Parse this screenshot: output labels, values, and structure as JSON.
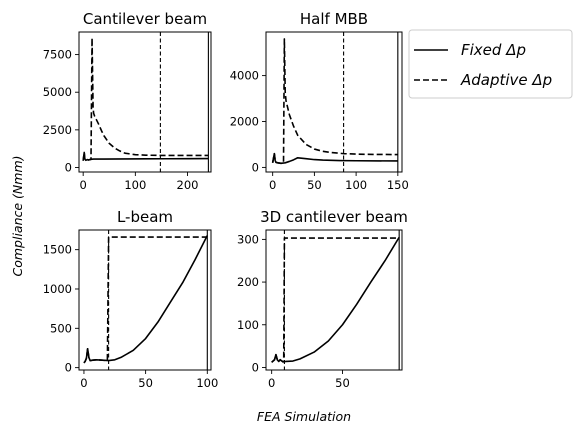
{
  "figure": {
    "ylabel": "Compliance (Nmm)",
    "xlabel": "FEA Simulation"
  },
  "legend": {
    "placement": "right",
    "entries": [
      {
        "label": "Fixed Δp",
        "style": "solid"
      },
      {
        "label": "Adaptive Δp",
        "style": "dashed"
      }
    ]
  },
  "colors": {
    "line": "#000000",
    "background": "#ffffff",
    "legend_border": "#cccccc"
  },
  "chart_data": [
    {
      "type": "line",
      "title": "Cantilever beam",
      "xlim": [
        -8,
        245
      ],
      "ylim": [
        -300,
        9000
      ],
      "xticks": [
        0,
        100,
        200
      ],
      "xtick_labels": [
        "0",
        "100",
        "200"
      ],
      "yticks": [
        0,
        2500,
        5000,
        7500
      ],
      "ytick_labels": [
        "0",
        "2500",
        "5000",
        "7500"
      ],
      "vlines": [
        {
          "x": 148,
          "style": "dashed"
        },
        {
          "x": 240,
          "style": "solid"
        }
      ],
      "series": [
        {
          "name": "Fixed Δp",
          "style": "solid",
          "x": [
            0,
            2,
            3,
            4,
            5,
            8,
            10,
            15,
            20,
            40,
            80,
            120,
            160,
            200,
            240
          ],
          "y": [
            450,
            1000,
            600,
            520,
            480,
            520,
            500,
            540,
            560,
            560,
            570,
            575,
            580,
            585,
            590
          ]
        },
        {
          "name": "Adaptive Δp",
          "style": "dashed",
          "x": [
            0,
            2,
            3,
            4,
            5,
            8,
            10,
            15,
            17,
            19,
            20,
            22,
            25,
            30,
            35,
            40,
            50,
            60,
            70,
            80,
            100,
            120,
            148,
            200,
            240
          ],
          "y": [
            450,
            1000,
            600,
            520,
            480,
            520,
            500,
            540,
            8600,
            4000,
            3600,
            3400,
            3200,
            2850,
            2450,
            2100,
            1600,
            1300,
            1100,
            950,
            850,
            820,
            800,
            800,
            800
          ]
        }
      ]
    },
    {
      "type": "line",
      "title": "Half MBB",
      "xlim": [
        -8,
        155
      ],
      "ylim": [
        -200,
        5900
      ],
      "xticks": [
        0,
        50,
        100,
        150
      ],
      "xtick_labels": [
        "0",
        "50",
        "100",
        "150"
      ],
      "yticks": [
        0,
        2000,
        4000
      ],
      "ytick_labels": [
        "0",
        "2000",
        "4000"
      ],
      "vlines": [
        {
          "x": 85,
          "style": "dashed"
        },
        {
          "x": 150,
          "style": "solid"
        }
      ],
      "series": [
        {
          "name": "Fixed Δp",
          "style": "solid",
          "x": [
            0,
            2,
            3,
            4,
            6,
            10,
            15,
            20,
            25,
            30,
            40,
            50,
            60,
            80,
            100,
            150
          ],
          "y": [
            200,
            600,
            300,
            220,
            200,
            180,
            200,
            260,
            330,
            420,
            380,
            340,
            320,
            300,
            290,
            280
          ]
        },
        {
          "name": "Adaptive Δp",
          "style": "dashed",
          "x": [
            0,
            2,
            3,
            4,
            6,
            10,
            13,
            14,
            15,
            16,
            18,
            20,
            25,
            30,
            40,
            50,
            60,
            70,
            85,
            110,
            150
          ],
          "y": [
            200,
            600,
            300,
            220,
            200,
            180,
            200,
            5600,
            3300,
            2900,
            2600,
            2300,
            1800,
            1400,
            1000,
            800,
            700,
            650,
            600,
            570,
            560
          ]
        }
      ]
    },
    {
      "type": "line",
      "title": "L-beam",
      "xlim": [
        -4,
        103
      ],
      "ylim": [
        -30,
        1750
      ],
      "xticks": [
        0,
        50,
        100
      ],
      "xtick_labels": [
        "0",
        "50",
        "100"
      ],
      "yticks": [
        0,
        500,
        1000,
        1500
      ],
      "ytick_labels": [
        "0",
        "500",
        "1000",
        "1500"
      ],
      "vlines": [
        {
          "x": 20,
          "style": "dashed"
        },
        {
          "x": 100,
          "style": "solid"
        }
      ],
      "series": [
        {
          "name": "Fixed Δp",
          "style": "solid",
          "x": [
            0,
            1,
            2,
            3,
            4,
            5,
            7,
            10,
            15,
            20,
            25,
            30,
            40,
            50,
            60,
            70,
            80,
            90,
            100
          ],
          "y": [
            60,
            80,
            120,
            240,
            130,
            90,
            95,
            100,
            95,
            90,
            100,
            130,
            220,
            370,
            580,
            830,
            1080,
            1370,
            1680
          ]
        },
        {
          "name": "Adaptive Δp",
          "style": "dashed",
          "x": [
            0,
            1,
            2,
            3,
            4,
            5,
            7,
            10,
            15,
            19,
            20,
            21,
            60,
            100
          ],
          "y": [
            60,
            80,
            120,
            240,
            130,
            90,
            95,
            100,
            95,
            90,
            1660,
            1660,
            1660,
            1660
          ]
        }
      ]
    },
    {
      "type": "line",
      "title": "3D cantilever beam",
      "xlim": [
        -4,
        92
      ],
      "ylim": [
        -6,
        322
      ],
      "xticks": [
        0,
        50
      ],
      "xtick_labels": [
        "0",
        "50"
      ],
      "yticks": [
        0,
        100,
        200,
        300
      ],
      "ytick_labels": [
        "0",
        "100",
        "200",
        "300"
      ],
      "vlines": [
        {
          "x": 9,
          "style": "dashed"
        },
        {
          "x": 90,
          "style": "solid"
        }
      ],
      "series": [
        {
          "name": "Fixed Δp",
          "style": "solid",
          "x": [
            0,
            2,
            3,
            4,
            5,
            6,
            8,
            10,
            15,
            20,
            30,
            40,
            50,
            60,
            70,
            80,
            90
          ],
          "y": [
            12,
            18,
            30,
            18,
            14,
            18,
            13,
            14,
            15,
            20,
            36,
            62,
            100,
            148,
            200,
            250,
            305
          ]
        },
        {
          "name": "Adaptive Δp",
          "style": "dashed",
          "x": [
            0,
            2,
            3,
            4,
            5,
            6,
            8,
            8.5,
            9,
            30,
            60,
            90
          ],
          "y": [
            12,
            18,
            30,
            18,
            14,
            18,
            13,
            15,
            303,
            303,
            303,
            303
          ]
        }
      ]
    }
  ]
}
